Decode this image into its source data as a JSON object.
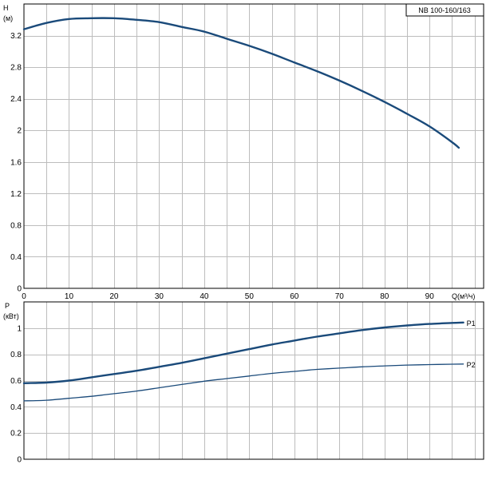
{
  "model_label": "NB 100-160/163",
  "chart_data": [
    {
      "type": "line",
      "ylabel": "H",
      "yunit": "(м)",
      "xlabel": "Q(м³/ч)",
      "xlim": [
        0,
        102
      ],
      "ylim": [
        0,
        3.6
      ],
      "xticks": [
        "0",
        "10",
        "20",
        "30",
        "40",
        "50",
        "60",
        "70",
        "80",
        "90"
      ],
      "yticks": [
        "0",
        "0.4",
        "0.8",
        "1.2",
        "1.6",
        "2",
        "2.4",
        "2.8",
        "3.2"
      ],
      "grid": true,
      "series": [
        {
          "name": "",
          "x": [
            0,
            5,
            10,
            15,
            20,
            25,
            30,
            35,
            40,
            45,
            50,
            55,
            60,
            65,
            70,
            75,
            80,
            85,
            90,
            95,
            96.5
          ],
          "y": [
            3.28,
            3.36,
            3.41,
            3.42,
            3.42,
            3.4,
            3.37,
            3.31,
            3.25,
            3.16,
            3.07,
            2.97,
            2.86,
            2.75,
            2.63,
            2.5,
            2.36,
            2.21,
            2.05,
            1.85,
            1.78
          ]
        }
      ]
    },
    {
      "type": "line",
      "ylabel": "P",
      "yunit": "(кВт)",
      "xlabel": "",
      "xlim": [
        0,
        102
      ],
      "ylim": [
        0,
        1.2
      ],
      "xticks": [],
      "yticks": [
        "0",
        "0.2",
        "0.4",
        "0.6",
        "0.8",
        "1"
      ],
      "grid": true,
      "series": [
        {
          "name": "P1",
          "x": [
            0,
            5,
            10,
            15,
            20,
            25,
            30,
            35,
            40,
            45,
            50,
            55,
            60,
            65,
            70,
            75,
            80,
            85,
            90,
            95,
            97.5
          ],
          "y": [
            0.58,
            0.585,
            0.6,
            0.625,
            0.65,
            0.675,
            0.705,
            0.735,
            0.77,
            0.805,
            0.84,
            0.875,
            0.905,
            0.935,
            0.96,
            0.985,
            1.005,
            1.02,
            1.032,
            1.04,
            1.043
          ]
        },
        {
          "name": "P2",
          "x": [
            0,
            5,
            10,
            15,
            20,
            25,
            30,
            35,
            40,
            45,
            50,
            55,
            60,
            65,
            70,
            75,
            80,
            85,
            90,
            95,
            97.5
          ],
          "y": [
            0.445,
            0.45,
            0.465,
            0.48,
            0.5,
            0.52,
            0.545,
            0.57,
            0.595,
            0.615,
            0.635,
            0.655,
            0.67,
            0.685,
            0.695,
            0.705,
            0.712,
            0.718,
            0.722,
            0.725,
            0.726
          ]
        }
      ]
    }
  ]
}
